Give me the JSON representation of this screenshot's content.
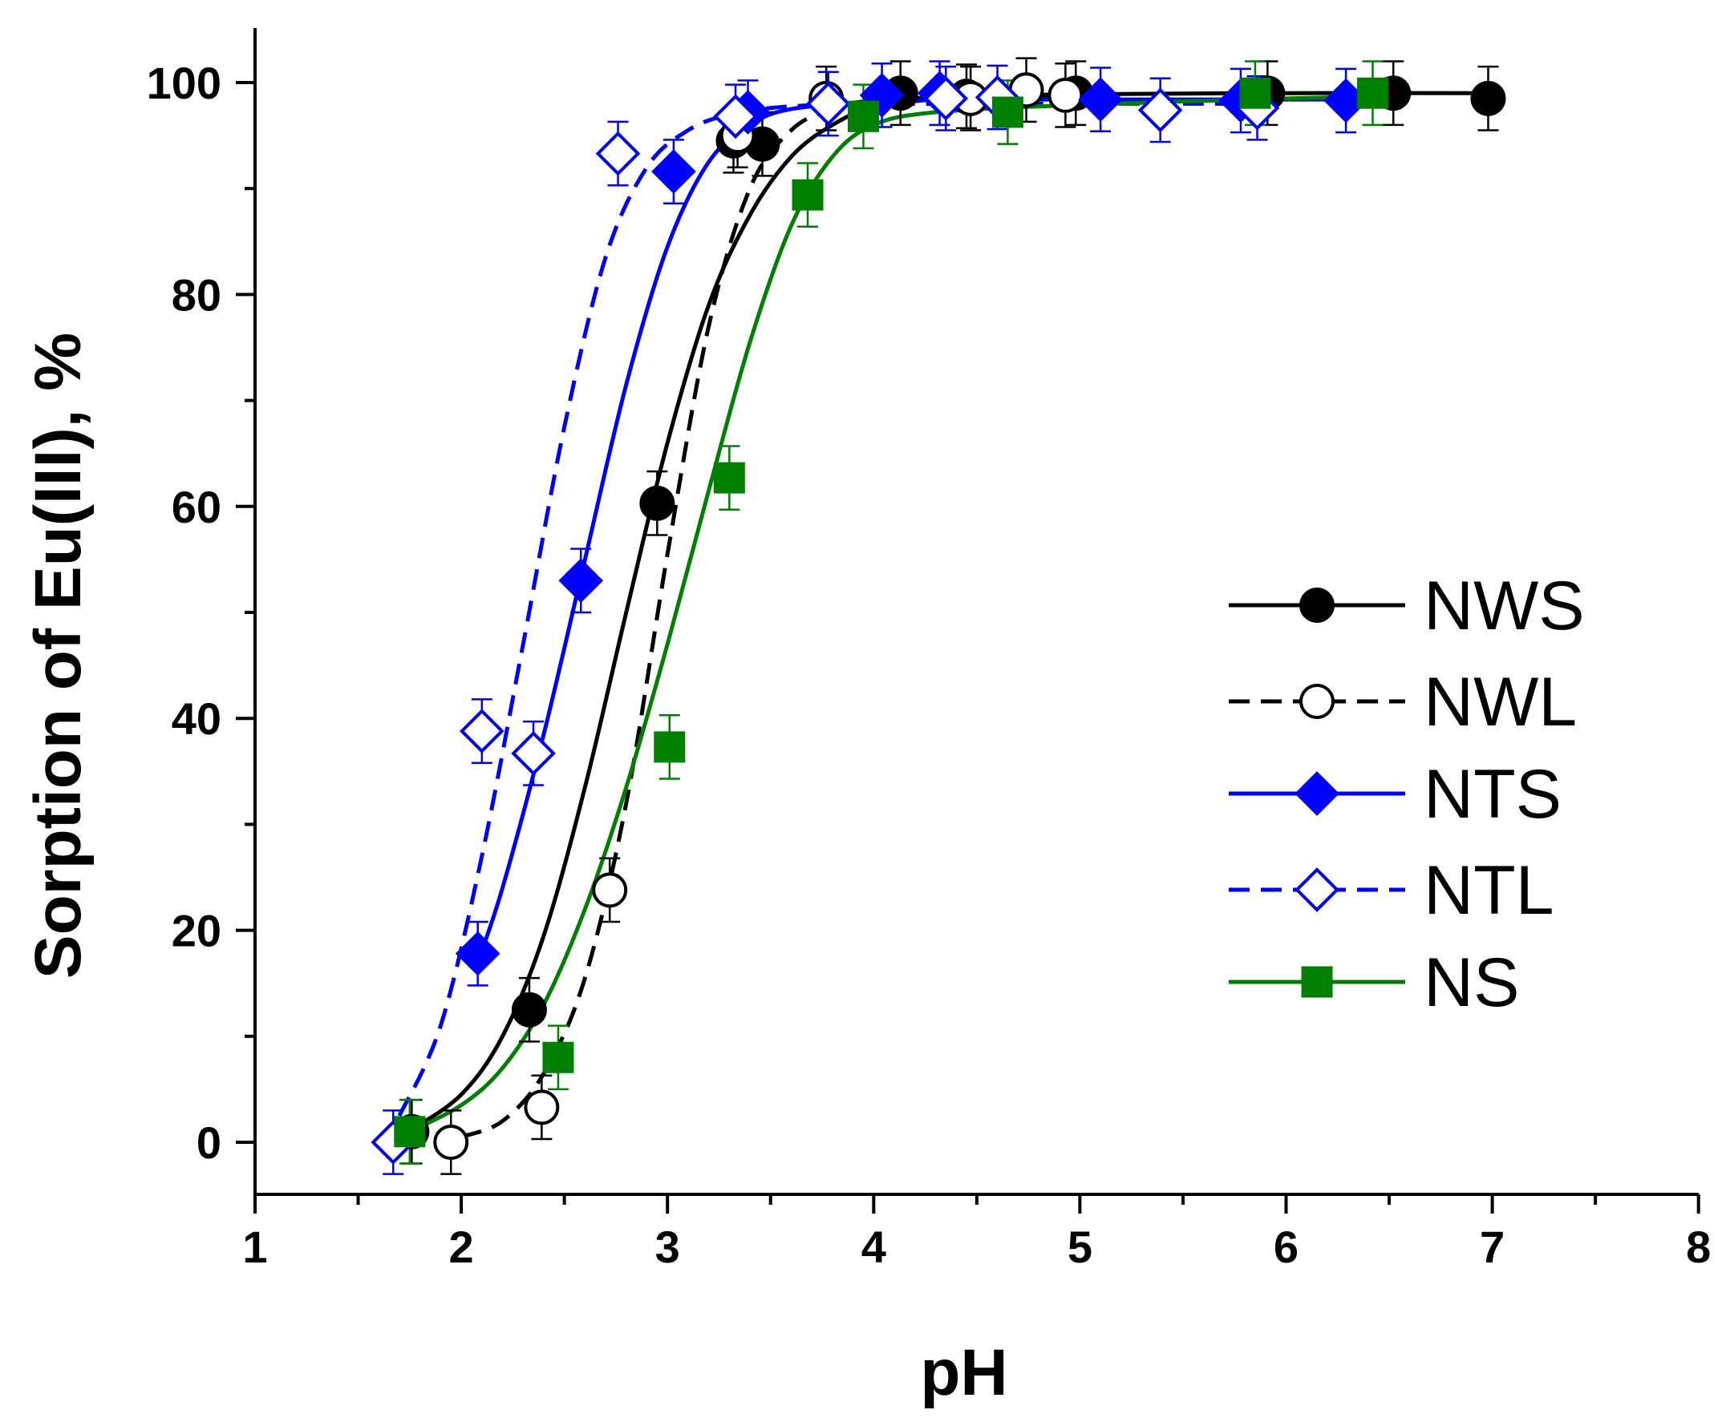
{
  "chart_data": {
    "type": "scatter",
    "title": "",
    "xlabel": "pH",
    "ylabel": "Sorption of Eu(III), %",
    "xlim": [
      1,
      8
    ],
    "ylim": [
      -5,
      105
    ],
    "xticks": [
      1,
      2,
      3,
      4,
      5,
      6,
      7,
      8
    ],
    "yticks": [
      0,
      20,
      40,
      60,
      80,
      100
    ],
    "grid": false,
    "legend_position": "center-right",
    "error_bar": 3,
    "series": [
      {
        "name": "NWS",
        "color": "#000000",
        "marker": "circle",
        "filled": true,
        "line": "solid",
        "points": [
          [
            1.76,
            1.0
          ],
          [
            2.33,
            12.5
          ],
          [
            2.95,
            60.3
          ],
          [
            3.32,
            94.5
          ],
          [
            3.46,
            94.2
          ],
          [
            4.13,
            99.0
          ],
          [
            4.45,
            98.7
          ],
          [
            4.98,
            99.0
          ],
          [
            5.91,
            99.0
          ],
          [
            6.52,
            99.0
          ],
          [
            6.98,
            98.5
          ]
        ],
        "fit": [
          [
            1.76,
            1.2
          ],
          [
            2.0,
            4.5
          ],
          [
            2.2,
            10.0
          ],
          [
            2.4,
            19.5
          ],
          [
            2.6,
            33.5
          ],
          [
            2.8,
            50.0
          ],
          [
            3.0,
            66.0
          ],
          [
            3.2,
            79.0
          ],
          [
            3.4,
            87.5
          ],
          [
            3.6,
            93.0
          ],
          [
            3.8,
            96.0
          ],
          [
            4.0,
            97.6
          ],
          [
            4.4,
            98.6
          ],
          [
            5.0,
            98.9
          ],
          [
            6.0,
            99.0
          ],
          [
            7.0,
            99.0
          ]
        ]
      },
      {
        "name": "NWL",
        "color": "#000000",
        "marker": "circle",
        "filled": false,
        "line": "dashed",
        "points": [
          [
            1.95,
            0.0
          ],
          [
            2.39,
            3.3
          ],
          [
            2.72,
            23.8
          ],
          [
            3.34,
            95.0
          ],
          [
            3.77,
            98.5
          ],
          [
            4.47,
            98.5
          ],
          [
            4.74,
            99.3
          ],
          [
            4.93,
            98.8
          ]
        ],
        "fit": [
          [
            2.0,
            0.5
          ],
          [
            2.2,
            2.0
          ],
          [
            2.4,
            6.5
          ],
          [
            2.6,
            15.5
          ],
          [
            2.8,
            32.0
          ],
          [
            3.0,
            55.5
          ],
          [
            3.2,
            77.0
          ],
          [
            3.4,
            90.0
          ],
          [
            3.6,
            95.5
          ],
          [
            3.8,
            97.5
          ],
          [
            4.0,
            98.3
          ],
          [
            4.5,
            98.7
          ],
          [
            5.0,
            98.8
          ]
        ]
      },
      {
        "name": "NTS",
        "color": "#0000ff",
        "marker": "diamond",
        "filled": true,
        "line": "solid",
        "points": [
          [
            2.08,
            17.8
          ],
          [
            2.58,
            53.0
          ],
          [
            3.03,
            91.6
          ],
          [
            3.39,
            97.2
          ],
          [
            4.04,
            98.8
          ],
          [
            4.32,
            99.0
          ],
          [
            5.1,
            98.4
          ],
          [
            5.78,
            98.3
          ],
          [
            6.29,
            98.3
          ]
        ],
        "fit": [
          [
            2.08,
            17.0
          ],
          [
            2.2,
            24.0
          ],
          [
            2.4,
            38.5
          ],
          [
            2.6,
            55.0
          ],
          [
            2.8,
            71.5
          ],
          [
            3.0,
            84.5
          ],
          [
            3.2,
            92.5
          ],
          [
            3.4,
            96.0
          ],
          [
            3.6,
            97.5
          ],
          [
            4.0,
            98.2
          ],
          [
            4.5,
            98.4
          ],
          [
            5.0,
            98.4
          ],
          [
            6.3,
            98.4
          ]
        ]
      },
      {
        "name": "NTL",
        "color": "#0000ff",
        "marker": "diamond",
        "filled": false,
        "line": "dashed",
        "points": [
          [
            1.67,
            0.0
          ],
          [
            2.1,
            38.8
          ],
          [
            2.35,
            36.7
          ],
          [
            2.76,
            93.3
          ],
          [
            3.33,
            96.8
          ],
          [
            3.78,
            98.0
          ],
          [
            4.35,
            98.5
          ],
          [
            4.6,
            98.6
          ],
          [
            5.39,
            97.4
          ],
          [
            5.86,
            97.6
          ]
        ],
        "fit": [
          [
            1.7,
            2.5
          ],
          [
            1.9,
            11.0
          ],
          [
            2.1,
            27.0
          ],
          [
            2.3,
            47.0
          ],
          [
            2.5,
            67.5
          ],
          [
            2.7,
            83.5
          ],
          [
            2.9,
            92.0
          ],
          [
            3.1,
            95.5
          ],
          [
            3.3,
            97.0
          ],
          [
            3.5,
            97.6
          ],
          [
            3.8,
            97.9
          ],
          [
            4.5,
            98.0
          ],
          [
            5.9,
            98.0
          ]
        ]
      },
      {
        "name": "NS",
        "color": "#008000",
        "marker": "square",
        "filled": true,
        "line": "solid",
        "points": [
          [
            1.75,
            1.0
          ],
          [
            2.47,
            8.0
          ],
          [
            3.01,
            37.3
          ],
          [
            3.3,
            62.7
          ],
          [
            3.68,
            89.4
          ],
          [
            3.95,
            96.8
          ],
          [
            4.65,
            97.2
          ],
          [
            5.85,
            99.0
          ],
          [
            6.42,
            99.0
          ]
        ],
        "fit": [
          [
            1.75,
            1.0
          ],
          [
            2.0,
            3.5
          ],
          [
            2.2,
            7.0
          ],
          [
            2.4,
            13.0
          ],
          [
            2.6,
            22.0
          ],
          [
            2.8,
            33.5
          ],
          [
            3.0,
            47.0
          ],
          [
            3.2,
            61.5
          ],
          [
            3.4,
            75.5
          ],
          [
            3.6,
            86.5
          ],
          [
            3.8,
            93.0
          ],
          [
            4.0,
            96.0
          ],
          [
            4.3,
            97.2
          ],
          [
            5.0,
            97.9
          ],
          [
            6.0,
            98.5
          ],
          [
            6.45,
            98.7
          ]
        ]
      }
    ]
  }
}
